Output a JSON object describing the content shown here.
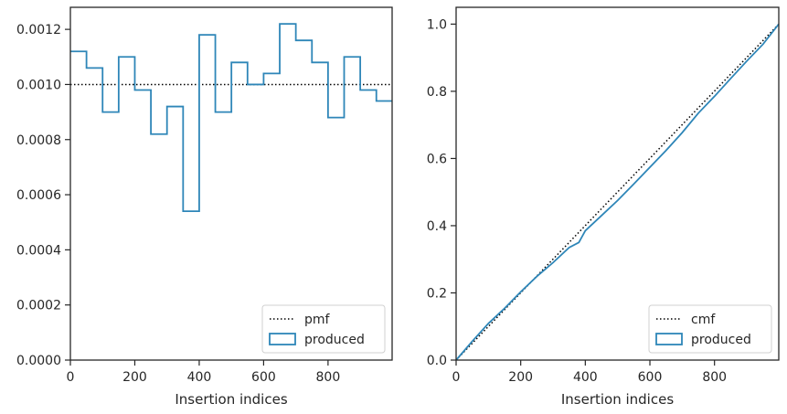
{
  "chart_data": [
    {
      "type": "step",
      "xlabel": "Insertion indices",
      "ylabel": "",
      "xlim": [
        0,
        999
      ],
      "ylim": [
        0,
        0.00128
      ],
      "xticks": [
        0,
        200,
        400,
        600,
        800
      ],
      "yticks": [
        "0.0000",
        "0.0002",
        "0.0004",
        "0.0006",
        "0.0008",
        "0.0010",
        "0.0012"
      ],
      "ytick_values": [
        0,
        0.0002,
        0.0004,
        0.0006,
        0.0008,
        0.001,
        0.0012
      ],
      "series": [
        {
          "name": "pmf",
          "style": "dotted",
          "color": "#000000",
          "x": [
            0,
            999
          ],
          "y": [
            0.001,
            0.001
          ]
        },
        {
          "name": "produced",
          "style": "step-histogram",
          "color": "#2e86b8",
          "bin_edges": [
            0,
            50,
            100,
            150,
            200,
            250,
            300,
            350,
            400,
            450,
            500,
            550,
            600,
            650,
            700,
            750,
            800,
            850,
            900,
            950,
            999
          ],
          "values": [
            0.00112,
            0.00106,
            0.0009,
            0.0011,
            0.00098,
            0.00082,
            0.00092,
            0.00054,
            0.00118,
            0.0009,
            0.00108,
            0.001,
            0.00104,
            0.00122,
            0.00116,
            0.00108,
            0.00088,
            0.0011,
            0.00098,
            0.00094
          ]
        }
      ],
      "legend": {
        "placement": "lower-right",
        "entries": [
          "pmf",
          "produced"
        ]
      },
      "grid": false
    },
    {
      "type": "line",
      "xlabel": "Insertion indices",
      "ylabel": "",
      "xlim": [
        0,
        999
      ],
      "ylim": [
        0,
        1.05
      ],
      "xticks": [
        0,
        200,
        400,
        600,
        800
      ],
      "yticks": [
        "0.0",
        "0.2",
        "0.4",
        "0.6",
        "0.8",
        "1.0"
      ],
      "ytick_values": [
        0,
        0.2,
        0.4,
        0.6,
        0.8,
        1.0
      ],
      "series": [
        {
          "name": "cmf",
          "style": "dotted",
          "color": "#000000",
          "x": [
            0,
            999
          ],
          "y": [
            0,
            1.0
          ]
        },
        {
          "name": "produced",
          "style": "solid",
          "color": "#2e86b8",
          "x": [
            0,
            50,
            100,
            150,
            200,
            250,
            300,
            350,
            380,
            400,
            450,
            500,
            550,
            600,
            650,
            700,
            750,
            800,
            850,
            900,
            950,
            999
          ],
          "y": [
            0,
            0.056,
            0.109,
            0.154,
            0.203,
            0.249,
            0.29,
            0.335,
            0.35,
            0.385,
            0.43,
            0.475,
            0.524,
            0.574,
            0.624,
            0.677,
            0.735,
            0.785,
            0.838,
            0.89,
            0.94,
            1.0
          ]
        }
      ],
      "legend": {
        "placement": "lower-right",
        "entries": [
          "cmf",
          "produced"
        ]
      },
      "grid": false
    }
  ]
}
